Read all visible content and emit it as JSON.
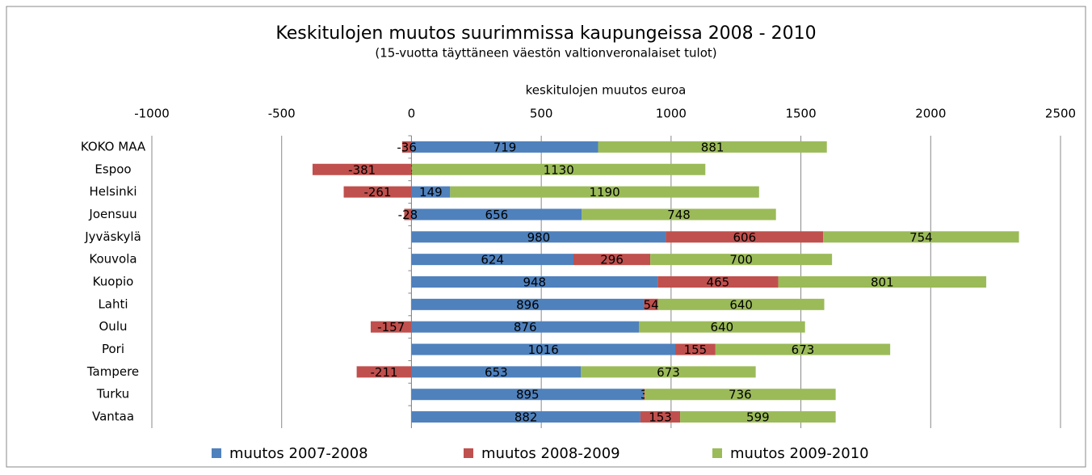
{
  "chart_data": {
    "type": "bar",
    "title": "Keskitulojen muutos suurimmissa kaupungeissa 2008 - 2010",
    "subtitle": "(15-vuotta täyttäneen väestön valtionveronalaiset tulot)",
    "x_label": "keskitulojen muutos euroa",
    "orientation": "horizontal",
    "stacked": true,
    "categories": [
      "KOKO MAA",
      "Espoo",
      "Helsinki",
      "Joensuu",
      "Jyväskylä",
      "Kouvola",
      "Kuopio",
      "Lahti",
      "Oulu",
      "Pori",
      "Tampere",
      "Turku",
      "Vantaa"
    ],
    "series": [
      {
        "name": "muutos 2007-2008",
        "color": "#4f81bd",
        "values": [
          719,
          2,
          149,
          656,
          980,
          624,
          948,
          896,
          876,
          1016,
          653,
          895,
          882
        ]
      },
      {
        "name": "muutos 2008-2009",
        "color": "#c0504d",
        "values": [
          -36,
          -381,
          -261,
          -28,
          606,
          296,
          465,
          54,
          -157,
          155,
          -211,
          3,
          153
        ]
      },
      {
        "name": "muutos 2009-2010",
        "color": "#9bbb59",
        "values": [
          881,
          1130,
          1190,
          748,
          754,
          700,
          801,
          640,
          640,
          673,
          673,
          736,
          599
        ]
      }
    ],
    "xlim": [
      -1000,
      2500
    ],
    "xticks": [
      -1000,
      -500,
      0,
      500,
      1000,
      1500,
      2000,
      2500
    ],
    "grid": true,
    "legend": "bottom"
  }
}
